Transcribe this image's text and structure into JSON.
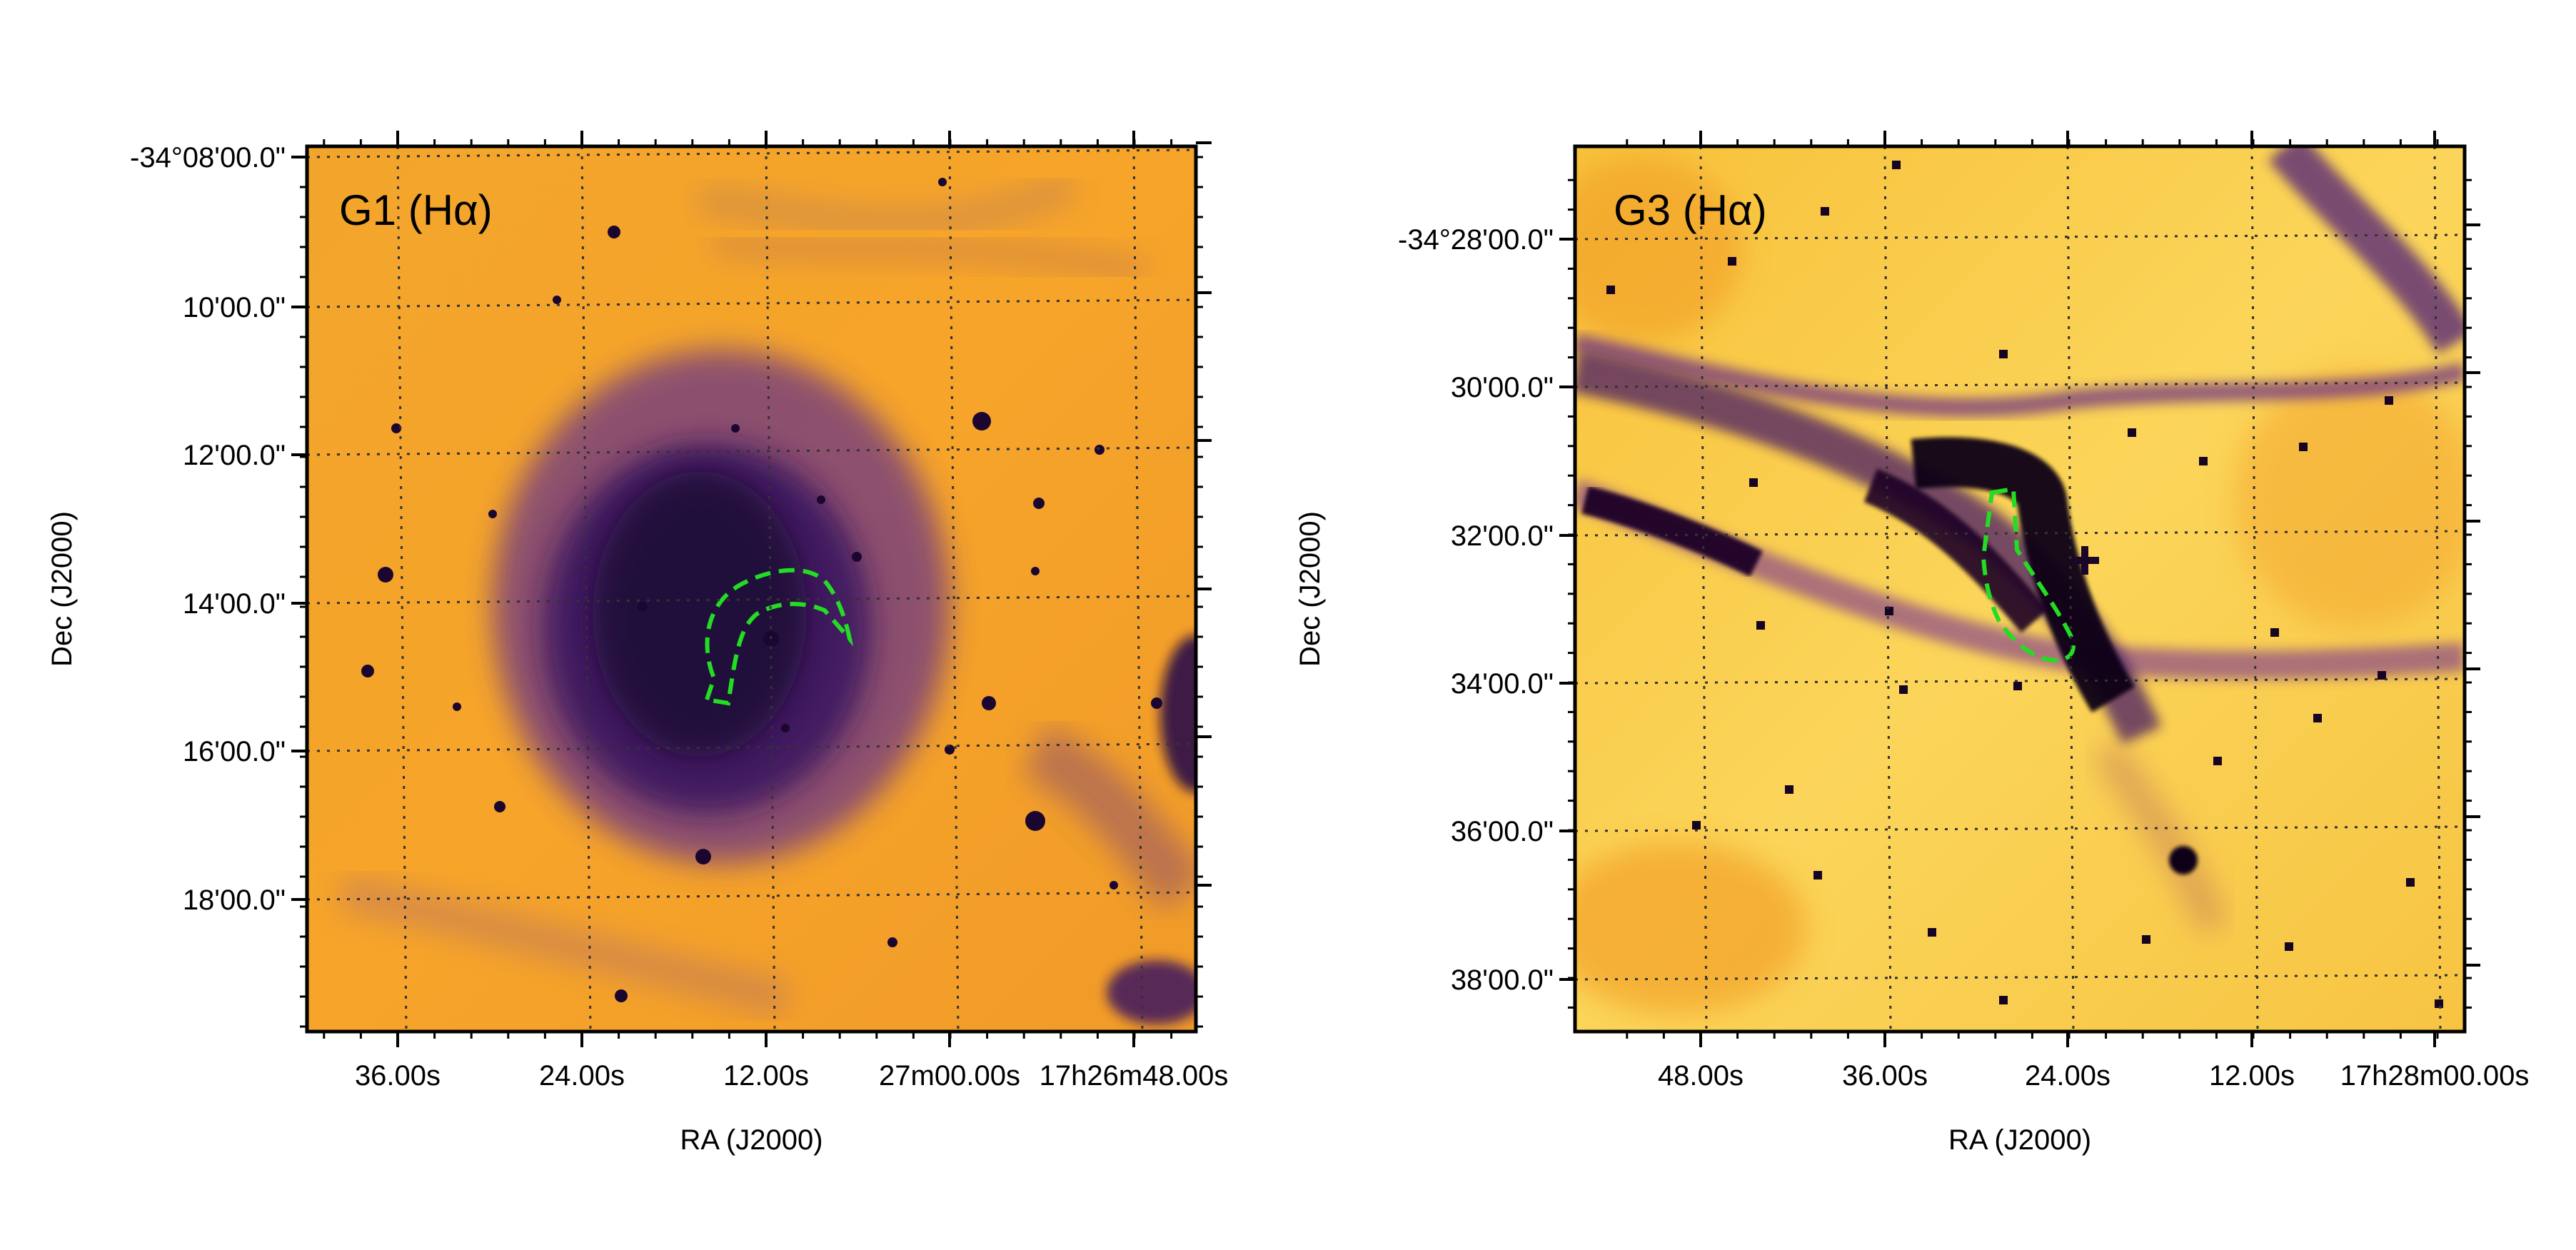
{
  "figure": {
    "panels": [
      {
        "id": "g1",
        "label": "G1 (Hα)",
        "xlabel": "RA (J2000)",
        "ylabel": "Dec (J2000)",
        "ra_ticks": [
          "36.00s",
          "24.00s",
          "12.00s",
          "27m00.00s",
          "17h26m48.00s"
        ],
        "dec_ticks": [
          "-34°08'00.0\"",
          "10'00.0\"",
          "12'00.0\"",
          "14'00.0\"",
          "16'00.0\"",
          "18'00.0\""
        ],
        "colormap": "inferno",
        "contour_color": "#22dd22"
      },
      {
        "id": "g3",
        "label": "G3 (Hα)",
        "xlabel": "RA (J2000)",
        "ylabel": "Dec (J2000)",
        "ra_ticks": [
          "48.00s",
          "36.00s",
          "24.00s",
          "12.00s",
          "17h28m00.00s"
        ],
        "dec_ticks": [
          "-34°28'00.0\"",
          "30'00.0\"",
          "32'00.0\"",
          "34'00.0\"",
          "36'00.0\"",
          "38'00.0\""
        ],
        "colormap": "inferno",
        "contour_color": "#22dd22"
      }
    ]
  }
}
